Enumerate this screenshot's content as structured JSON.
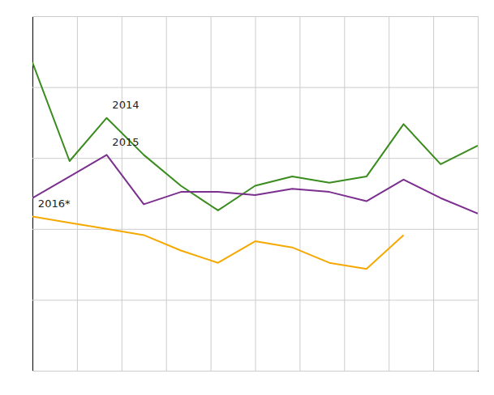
{
  "chart_data": {
    "type": "line",
    "x": [
      0,
      1,
      2,
      3,
      4,
      5,
      6,
      7,
      8,
      9,
      10,
      11,
      12
    ],
    "series": [
      {
        "name": "2014",
        "color": "#3a8c1e",
        "values": [
          100,
          68,
          82,
          70,
          60,
          52,
          60,
          63,
          61,
          63,
          80,
          67,
          73
        ]
      },
      {
        "name": "2015",
        "color": "#7b2f8e",
        "values": [
          56,
          63,
          70,
          54,
          58,
          58,
          57,
          59,
          58,
          55,
          62,
          56,
          51
        ]
      },
      {
        "name": "2016",
        "color": "#f5a800",
        "values": [
          50,
          48,
          46,
          44,
          39,
          35,
          42,
          40,
          35,
          33,
          44,
          null,
          null
        ]
      }
    ],
    "xlim": [
      0,
      12
    ],
    "xticks": [
      0,
      1.2,
      2.4,
      3.6,
      4.8,
      6,
      7.2,
      8.4,
      9.6,
      10.8,
      12
    ],
    "ylim": [
      0,
      115
    ],
    "yticks": [
      0,
      23,
      46,
      69,
      92,
      115
    ],
    "grid": true,
    "tick_labels": false,
    "annotations": [
      {
        "text": "2014",
        "x": 2.15,
        "y": 85
      },
      {
        "text": "2015",
        "x": 2.15,
        "y": 73
      },
      {
        "text": "2016*",
        "x": 0.15,
        "y": 53
      }
    ]
  }
}
